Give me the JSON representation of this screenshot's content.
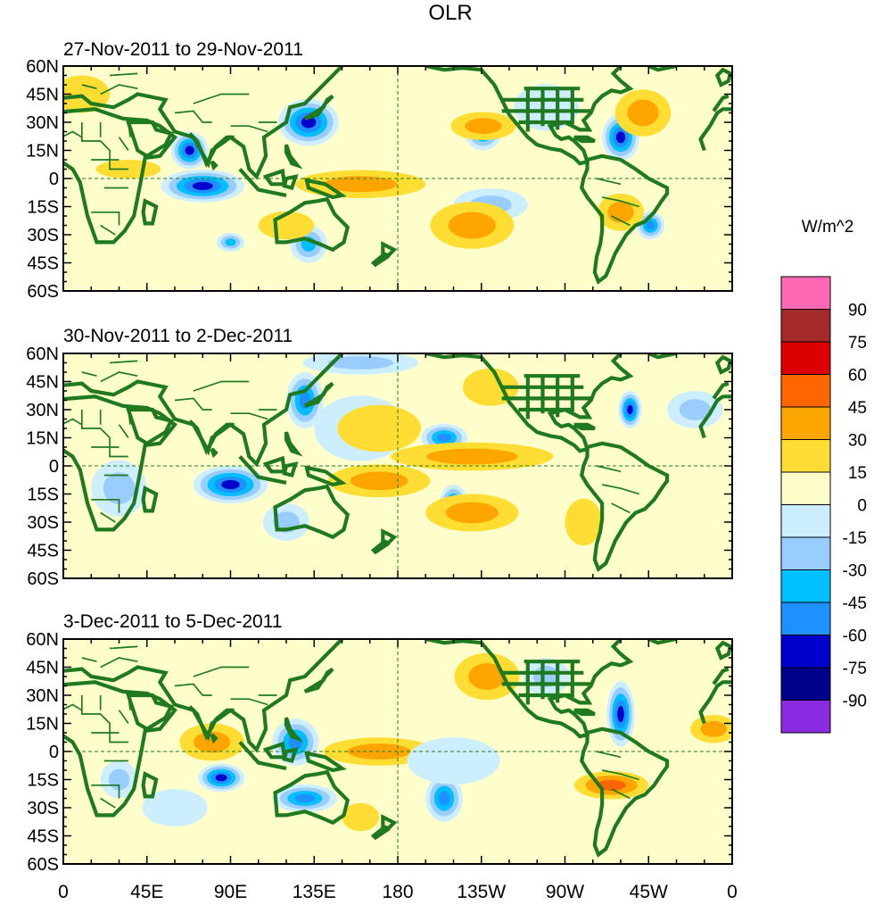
{
  "title": "OLR",
  "colorbar": {
    "units": "W/m^2",
    "colors": [
      "#ff69b4",
      "#a52a2a",
      "#dd0000",
      "#ff6600",
      "#ffa500",
      "#ffdd33",
      "#ffffcc",
      "#cceeff",
      "#99ccff",
      "#00bfff",
      "#1e90ff",
      "#0000cd",
      "#00008b",
      "#8a2be2"
    ],
    "labels": [
      "90",
      "75",
      "60",
      "45",
      "30",
      "15",
      "0",
      "-15",
      "-30",
      "-45",
      "-60",
      "-75",
      "-90"
    ]
  },
  "lat_labels": [
    "60N",
    "45N",
    "30N",
    "15N",
    "0",
    "15S",
    "30S",
    "45S",
    "60S"
  ],
  "lon_labels": [
    "0",
    "45E",
    "90E",
    "135E",
    "180",
    "135W",
    "90W",
    "45W",
    "0"
  ],
  "panels": [
    {
      "title": "27-Nov-2011 to 29-Nov-2011"
    },
    {
      "title": "30-Nov-2011 to 2-Dec-2011"
    },
    {
      "title": "3-Dec-2011 to 5-Dec-2011"
    }
  ],
  "anomalies": [
    [
      {
        "lon": 75,
        "lat": -4,
        "rlon": 18,
        "rlat": 7,
        "v": -85
      },
      {
        "lon": 68,
        "lat": 15,
        "rlon": 8,
        "rlat": 8,
        "v": -80
      },
      {
        "lon": 132,
        "lat": 30,
        "rlon": 13,
        "rlat": 10,
        "v": -75
      },
      {
        "lon": 226,
        "lat": 25,
        "rlon": 8,
        "rlat": 8,
        "v": -70
      },
      {
        "lon": 300,
        "lat": 22,
        "rlon": 8,
        "rlat": 10,
        "v": -80
      },
      {
        "lon": 316,
        "lat": -25,
        "rlon": 6,
        "rlat": 6,
        "v": -60
      },
      {
        "lon": 90,
        "lat": -34,
        "rlon": 6,
        "rlat": 4,
        "v": -50
      },
      {
        "lon": 132,
        "lat": -35,
        "rlon": 8,
        "rlat": 8,
        "v": -45
      },
      {
        "lon": 230,
        "lat": -14,
        "rlon": 16,
        "rlat": 7,
        "v": -40
      },
      {
        "lon": 160,
        "lat": -3,
        "rlon": 28,
        "rlat": 6,
        "v": 35
      },
      {
        "lon": 220,
        "lat": -25,
        "rlon": 18,
        "rlat": 10,
        "v": 35
      },
      {
        "lon": 312,
        "lat": 35,
        "rlon": 12,
        "rlat": 10,
        "v": 35
      },
      {
        "lon": 226,
        "lat": 28,
        "rlon": 14,
        "rlat": 6,
        "v": 30
      },
      {
        "lon": 120,
        "lat": -25,
        "rlon": 12,
        "rlat": 6,
        "v": 28
      },
      {
        "lon": 300,
        "lat": -18,
        "rlon": 10,
        "rlat": 8,
        "v": 30
      },
      {
        "lon": 35,
        "lat": 5,
        "rlon": 14,
        "rlat": 4,
        "v": 18
      },
      {
        "lon": 10,
        "lat": 45,
        "rlon": 12,
        "rlat": 8,
        "v": 20
      },
      {
        "lon": 260,
        "lat": 38,
        "rlon": 14,
        "rlat": 10,
        "v": -20
      }
    ],
    [
      {
        "lon": 90,
        "lat": -10,
        "rlon": 16,
        "rlat": 8,
        "v": -75
      },
      {
        "lon": 130,
        "lat": 35,
        "rlon": 8,
        "rlat": 12,
        "v": -60
      },
      {
        "lon": 205,
        "lat": 15,
        "rlon": 10,
        "rlat": 6,
        "v": -60
      },
      {
        "lon": 305,
        "lat": 30,
        "rlon": 5,
        "rlat": 8,
        "v": -75
      },
      {
        "lon": 210,
        "lat": -20,
        "rlon": 6,
        "rlat": 8,
        "v": -65
      },
      {
        "lon": 160,
        "lat": 55,
        "rlon": 25,
        "rlat": 5,
        "v": -40
      },
      {
        "lon": 160,
        "lat": 20,
        "rlon": 20,
        "rlat": 14,
        "v": -20
      },
      {
        "lon": 170,
        "lat": -8,
        "rlon": 22,
        "rlat": 7,
        "v": 40
      },
      {
        "lon": 220,
        "lat": -25,
        "rlon": 20,
        "rlat": 8,
        "v": 30
      },
      {
        "lon": 28,
        "lat": -15,
        "rlon": 8,
        "rlat": 8,
        "v": 45
      },
      {
        "lon": 220,
        "lat": 5,
        "rlon": 35,
        "rlat": 6,
        "v": 30
      },
      {
        "lon": 170,
        "lat": 20,
        "rlon": 18,
        "rlat": 10,
        "v": 20
      },
      {
        "lon": 230,
        "lat": 42,
        "rlon": 12,
        "rlat": 8,
        "v": 25
      },
      {
        "lon": 30,
        "lat": -12,
        "rlon": 12,
        "rlat": 12,
        "v": -30
      },
      {
        "lon": 340,
        "lat": 30,
        "rlon": 12,
        "rlat": 8,
        "v": -40
      },
      {
        "lon": 120,
        "lat": -30,
        "rlon": 10,
        "rlat": 8,
        "v": -30
      },
      {
        "lon": 280,
        "lat": -30,
        "rlon": 8,
        "rlat": 10,
        "v": 25
      }
    ],
    [
      {
        "lon": 130,
        "lat": -25,
        "rlon": 14,
        "rlat": 6,
        "v": -70
      },
      {
        "lon": 85,
        "lat": -14,
        "rlon": 10,
        "rlat": 6,
        "v": -75
      },
      {
        "lon": 125,
        "lat": 5,
        "rlon": 10,
        "rlat": 10,
        "v": -60
      },
      {
        "lon": 300,
        "lat": 20,
        "rlon": 6,
        "rlat": 14,
        "v": -80
      },
      {
        "lon": 205,
        "lat": -25,
        "rlon": 8,
        "rlat": 10,
        "v": -65
      },
      {
        "lon": 170,
        "lat": 0,
        "rlon": 24,
        "rlat": 6,
        "v": 35
      },
      {
        "lon": 295,
        "lat": -18,
        "rlon": 16,
        "rlat": 6,
        "v": 45
      },
      {
        "lon": 80,
        "lat": 5,
        "rlon": 14,
        "rlat": 8,
        "v": 35
      },
      {
        "lon": 228,
        "lat": 40,
        "rlon": 14,
        "rlat": 10,
        "v": 30
      },
      {
        "lon": 260,
        "lat": 40,
        "rlon": 10,
        "rlat": 8,
        "v": -35
      },
      {
        "lon": 30,
        "lat": -15,
        "rlon": 8,
        "rlat": 8,
        "v": -30
      },
      {
        "lon": 350,
        "lat": 12,
        "rlon": 10,
        "rlat": 6,
        "v": 30
      },
      {
        "lon": 160,
        "lat": -35,
        "rlon": 8,
        "rlat": 6,
        "v": 25
      },
      {
        "lon": 60,
        "lat": -30,
        "rlon": 14,
        "rlat": 8,
        "v": -25
      },
      {
        "lon": 210,
        "lat": -5,
        "rlon": 20,
        "rlat": 10,
        "v": -20
      }
    ]
  ]
}
